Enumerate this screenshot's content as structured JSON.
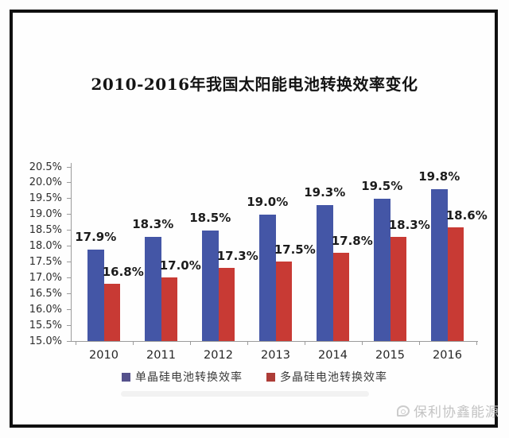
{
  "page": {
    "title": "2010-2016年我国太阳能电池转换效率变化",
    "watermark_label": "保利协鑫能源"
  },
  "chart_data": {
    "type": "bar",
    "title": "2010-2016年我国太阳能电池转换效率变化",
    "categories": [
      "2010",
      "2011",
      "2012",
      "2013",
      "2014",
      "2015",
      "2016"
    ],
    "series": [
      {
        "name": "单晶硅电池转换效率",
        "color": "#4456a6",
        "swatch_color": "#55518c",
        "values": [
          17.9,
          18.3,
          18.5,
          19.0,
          19.3,
          19.5,
          19.8
        ],
        "data_labels": [
          "17.9%",
          "18.3%",
          "18.5%",
          "19.0%",
          "19.3%",
          "19.5%",
          "19.8%"
        ]
      },
      {
        "name": "多晶硅电池转换效率",
        "color": "#c83a34",
        "swatch_color": "#ad3c37",
        "values": [
          16.8,
          17.0,
          17.3,
          17.5,
          17.8,
          18.3,
          18.6
        ],
        "data_labels": [
          "16.8%",
          "17.0%",
          "17.3%",
          "17.5%",
          "17.8%",
          "18.3%",
          "18.6%"
        ]
      }
    ],
    "ylim": [
      15.0,
      20.5
    ],
    "ytick_step": 0.5,
    "ytick_labels": [
      "15.0%",
      "15.5%",
      "16.0%",
      "16.5%",
      "17.0%",
      "17.5%",
      "18.0%",
      "18.5%",
      "19.0%",
      "19.5%",
      "20.0%",
      "20.5%"
    ],
    "xlabel": "",
    "ylabel": "",
    "grid": false,
    "legend_position": "bottom",
    "axis_color": "#9b9b9b"
  }
}
